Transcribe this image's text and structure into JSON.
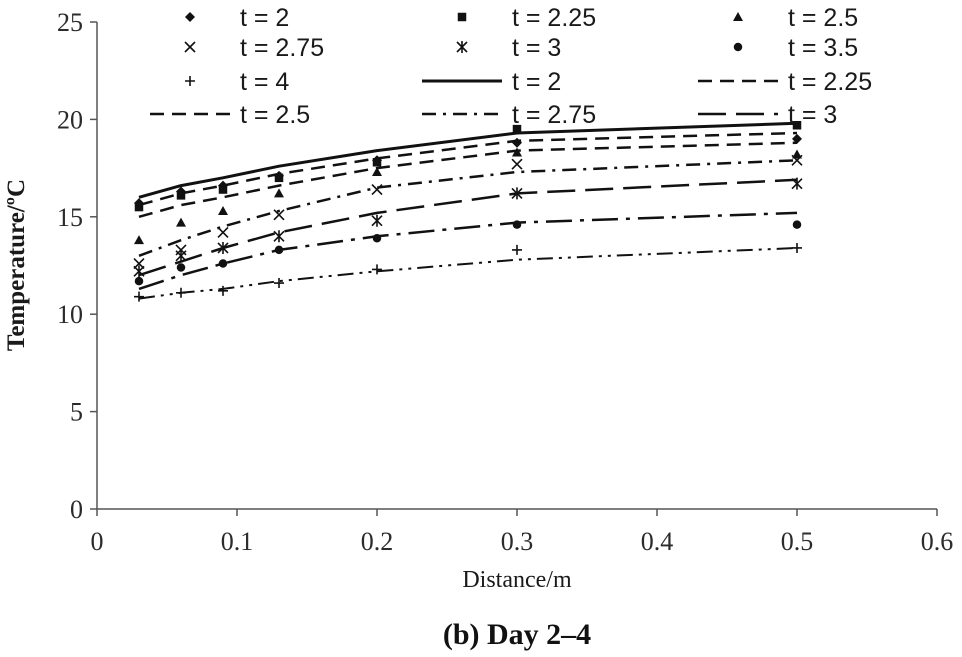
{
  "chart_data": {
    "type": "line",
    "title": "",
    "caption": "(b) Day 2–4",
    "xlabel": "Distance/m",
    "ylabel": "Temperature/ºC",
    "xlim": [
      0,
      0.6
    ],
    "ylim": [
      0,
      25
    ],
    "xticks": [
      0,
      0.1,
      0.2,
      0.3,
      0.4,
      0.5,
      0.6
    ],
    "xtick_labels": [
      "0",
      "0.1",
      "0.2",
      "0.3",
      "0.4",
      "0.5",
      "0.6"
    ],
    "yticks": [
      0,
      5,
      10,
      15,
      20,
      25
    ],
    "ytick_labels": [
      "0",
      "5",
      "10",
      "15",
      "20",
      "25"
    ],
    "grid": false,
    "legend_position": "top",
    "x": [
      0.03,
      0.06,
      0.09,
      0.13,
      0.2,
      0.3,
      0.5
    ],
    "measured_series": [
      {
        "name": "t = 2",
        "marker": "diamond",
        "values": [
          15.7,
          16.3,
          16.6,
          17.1,
          17.9,
          18.8,
          19.0
        ]
      },
      {
        "name": "t = 2.25",
        "marker": "square",
        "values": [
          15.5,
          16.1,
          16.4,
          17.0,
          17.8,
          19.5,
          19.7
        ]
      },
      {
        "name": "t = 2.5",
        "marker": "triangle",
        "values": [
          13.8,
          14.7,
          15.3,
          16.2,
          17.3,
          18.3,
          18.2
        ]
      },
      {
        "name": "t = 2.75",
        "marker": "x",
        "values": [
          12.6,
          13.3,
          14.2,
          15.1,
          16.4,
          17.7,
          17.9
        ]
      },
      {
        "name": "t = 3",
        "marker": "star",
        "values": [
          12.2,
          13.0,
          13.4,
          14.0,
          14.8,
          16.2,
          16.7
        ]
      },
      {
        "name": "t = 3.5",
        "marker": "circle",
        "values": [
          11.7,
          12.4,
          12.6,
          13.3,
          13.9,
          14.6,
          14.6
        ]
      },
      {
        "name": "t = 4",
        "marker": "plus",
        "values": [
          10.9,
          11.1,
          11.2,
          11.6,
          12.3,
          13.3,
          13.4
        ]
      }
    ],
    "simulated_series": [
      {
        "name": "t = 2",
        "dash": "solid",
        "values": [
          16.0,
          16.6,
          17.0,
          17.6,
          18.4,
          19.3,
          19.8
        ]
      },
      {
        "name": "t = 2.25",
        "dash": "dash",
        "values": [
          15.6,
          16.2,
          16.6,
          17.2,
          18.0,
          18.9,
          19.3
        ]
      },
      {
        "name": "t = 2.5",
        "dash": "dash",
        "values": [
          15.0,
          15.6,
          16.0,
          16.6,
          17.5,
          18.4,
          18.8
        ]
      },
      {
        "name": "t = 2.75",
        "dash": "dashdot",
        "values": [
          13.0,
          13.8,
          14.5,
          15.3,
          16.5,
          17.3,
          17.9
        ]
      },
      {
        "name": "t = 3",
        "dash": "longdash",
        "values": [
          12.0,
          12.7,
          13.4,
          14.2,
          15.2,
          16.2,
          16.9
        ]
      },
      {
        "name": "t = 3.5",
        "dash": "longdashdot",
        "values": [
          11.3,
          12.0,
          12.6,
          13.3,
          14.0,
          14.7,
          15.2
        ]
      },
      {
        "name": "t = 4",
        "dash": "dashdotdot",
        "values": [
          10.8,
          11.1,
          11.3,
          11.7,
          12.2,
          12.8,
          13.4
        ]
      }
    ],
    "legend_entries": [
      {
        "label": "t = 2",
        "kind": "marker",
        "style": "diamond"
      },
      {
        "label": "t = 2.25",
        "kind": "marker",
        "style": "square"
      },
      {
        "label": "t = 2.5",
        "kind": "marker",
        "style": "triangle"
      },
      {
        "label": "t = 2.75",
        "kind": "marker",
        "style": "x"
      },
      {
        "label": "t = 3",
        "kind": "marker",
        "style": "star"
      },
      {
        "label": "t = 3.5",
        "kind": "marker",
        "style": "circle"
      },
      {
        "label": "t = 4",
        "kind": "marker",
        "style": "plus"
      },
      {
        "label": "t = 2",
        "kind": "line",
        "style": "solid"
      },
      {
        "label": "t = 2.25",
        "kind": "line",
        "style": "dash"
      },
      {
        "label": "t = 2.5",
        "kind": "line",
        "style": "dash"
      },
      {
        "label": "t = 2.75",
        "kind": "line",
        "style": "dashdot"
      },
      {
        "label": "t = 3",
        "kind": "line",
        "style": "longdash"
      }
    ]
  }
}
